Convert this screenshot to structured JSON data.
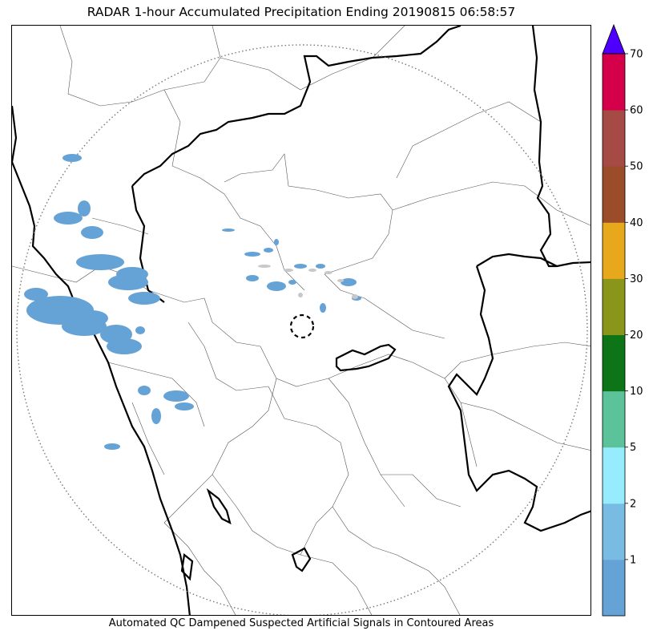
{
  "title": "RADAR 1-hour Accumulated Precipitation Ending 20190815 06:58:57",
  "footer": "Automated QC Dampened Suspected Artificial Signals in Contoured Areas",
  "legend": {
    "levels": [
      "1",
      "2",
      "5",
      "10",
      "20",
      "30",
      "40",
      "50",
      "60",
      "70"
    ],
    "colors": [
      "#65a2d6",
      "#78bce4",
      "#96ecfc",
      "#5cc29a",
      "#0e7418",
      "#8a961a",
      "#e7a81b",
      "#9b4d29",
      "#a64a45",
      "#d5004a"
    ],
    "extend_color": "#4e00ff"
  },
  "map": {
    "precip_color": "#65a2d6",
    "artifact_color": "#c8c8c8",
    "range_ring": "dotted",
    "radar_marker": "dashed-circle"
  }
}
